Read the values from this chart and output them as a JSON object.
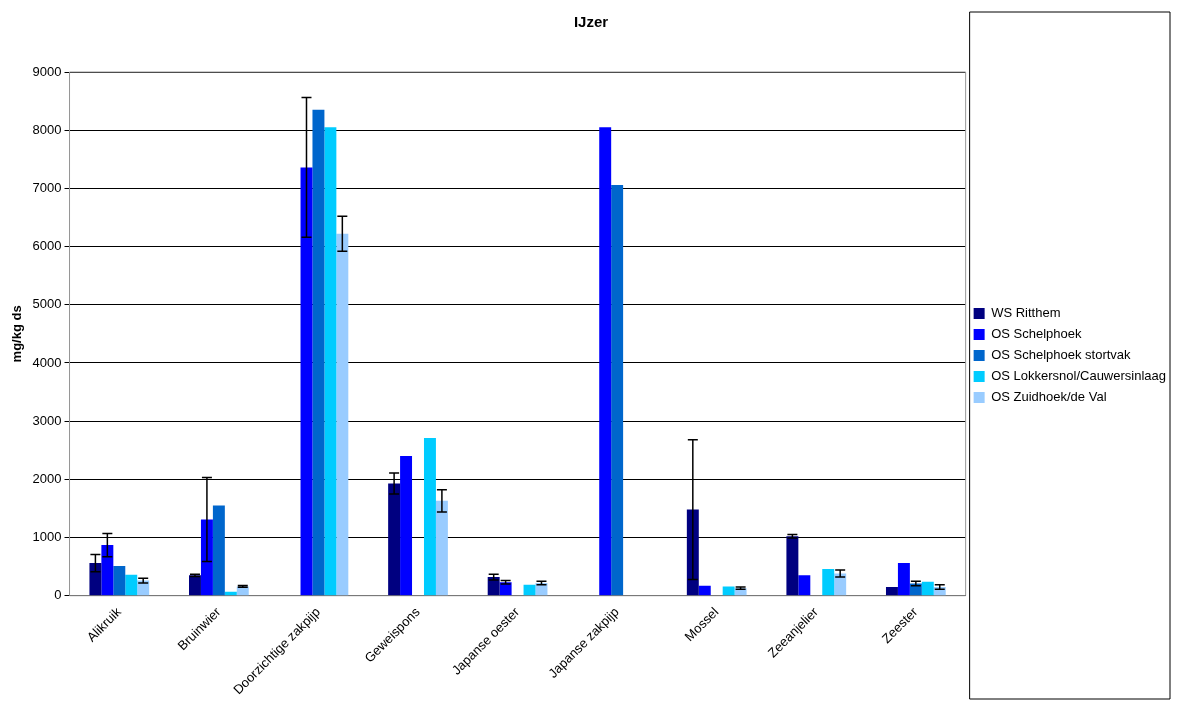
{
  "chart_data": {
    "type": "bar",
    "title": "IJzer",
    "ylabel": "mg/kg ds",
    "categories": [
      "Alikruik",
      "Bruinwier",
      "Doorzichtige zakpijp",
      "Geweispons",
      "Japanse oester",
      "Japanse zakpijp",
      "Mossel",
      "Zeeanjelier",
      "Zeester"
    ],
    "series": [
      {
        "name": "WS Ritthem",
        "color": "#000080",
        "values": [
          560,
          350,
          null,
          1930,
          320,
          null,
          1480,
          1020,
          150
        ],
        "errors": [
          150,
          20,
          null,
          180,
          50,
          null,
          1200,
          30,
          null
        ]
      },
      {
        "name": "OS Schelphoek",
        "color": "#0000ff",
        "values": [
          870,
          1310,
          7360,
          2400,
          230,
          8050,
          170,
          350,
          560
        ],
        "errors": [
          200,
          720,
          1200,
          null,
          30,
          null,
          null,
          null,
          null
        ]
      },
      {
        "name": "OS Schelphoek stortvak",
        "color": "#0066cc",
        "values": [
          510,
          1550,
          8350,
          null,
          null,
          7060,
          null,
          null,
          210
        ],
        "errors": [
          null,
          null,
          null,
          null,
          null,
          null,
          null,
          null,
          40
        ]
      },
      {
        "name": "OS Lokkersnol/Cauwersinlaag",
        "color": "#00ccff",
        "values": [
          360,
          70,
          8050,
          2710,
          190,
          null,
          160,
          460,
          240
        ],
        "errors": [
          null,
          null,
          null,
          null,
          null,
          null,
          null,
          null,
          null
        ]
      },
      {
        "name": "OS Zuidhoek/de Val",
        "color": "#99ccff",
        "values": [
          260,
          160,
          6220,
          1630,
          220,
          null,
          130,
          380,
          150
        ],
        "errors": [
          40,
          15,
          300,
          190,
          30,
          null,
          20,
          60,
          40
        ]
      }
    ],
    "ylim": [
      0,
      9000
    ],
    "yticks": [
      0,
      1000,
      2000,
      3000,
      4000,
      5000,
      6000,
      7000,
      8000,
      9000
    ],
    "grid": "y",
    "legend": "right"
  }
}
